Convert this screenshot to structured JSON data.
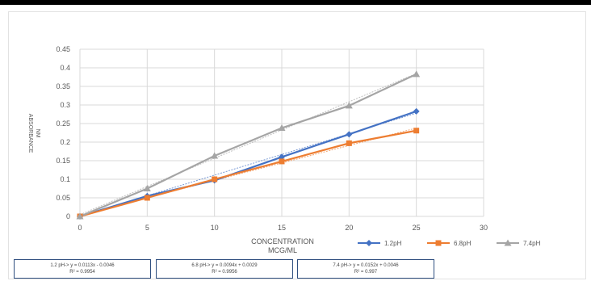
{
  "chart_data": {
    "type": "line",
    "title": "",
    "xlabel": "CONCENTRATION MCG/ML",
    "xlabel_lines": [
      "CONCENTRATION",
      "MCG/ML"
    ],
    "ylabel": "ABSORBANCE NM",
    "ylabel_lines": [
      "ABSORBANCE",
      "NM"
    ],
    "xlim": [
      0,
      30
    ],
    "ylim": [
      0,
      0.45
    ],
    "x_ticks": [
      "0",
      "5",
      "10",
      "15",
      "20",
      "25",
      "30"
    ],
    "y_ticks": [
      "0",
      "0.05",
      "0.1",
      "0.15",
      "0.2",
      "0.25",
      "0.3",
      "0.35",
      "0.4",
      "0.45"
    ],
    "grid": true,
    "legend_position": "bottom-right",
    "x": [
      0,
      5,
      10,
      15,
      20,
      25
    ],
    "series": [
      {
        "name": "1.2pH",
        "color": "#4472c4",
        "marker": "diamond",
        "values": [
          0,
          0.055,
          0.097,
          0.16,
          0.221,
          0.283
        ]
      },
      {
        "name": "6.8pH",
        "color": "#ed7d31",
        "marker": "square",
        "values": [
          0,
          0.05,
          0.1,
          0.148,
          0.197,
          0.231
        ]
      },
      {
        "name": "7.4pH",
        "color": "#a5a5a5",
        "marker": "triangle",
        "values": [
          0,
          0.075,
          0.163,
          0.238,
          0.298,
          0.383
        ]
      }
    ],
    "trendlines": [
      {
        "series": "1.2pH",
        "slope": 0.0113,
        "intercept": -0.0046
      },
      {
        "series": "6.8pH",
        "slope": 0.0094,
        "intercept": 0.0029
      },
      {
        "series": "7.4pH",
        "slope": 0.0152,
        "intercept": 0.0046
      }
    ],
    "annotations": [
      {
        "equation": "1.2 pH-> y = 0.0113x - 0.0046",
        "r2": "R² = 0.9954"
      },
      {
        "equation": "6.8 pH-> y = 0.0094x + 0.0029",
        "r2": "R² = 0.9956"
      },
      {
        "equation": "7.4 pH-> y = 0.0152x + 0.0046",
        "r2": "R² = 0.997"
      }
    ]
  }
}
